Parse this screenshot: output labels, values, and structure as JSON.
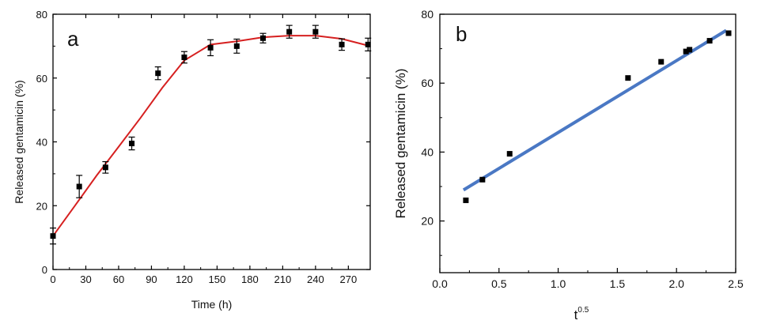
{
  "chart_data": [
    {
      "type": "scatter",
      "panel_label": "a",
      "xlabel": "Time (h)",
      "ylabel": "Released gentamicin (%)",
      "xlim": [
        0,
        290
      ],
      "ylim": [
        0,
        80
      ],
      "xticks": [
        0,
        30,
        60,
        90,
        120,
        150,
        180,
        210,
        240,
        270
      ],
      "yticks": [
        0,
        20,
        40,
        60,
        80
      ],
      "grid": false,
      "series": [
        {
          "kind": "points-with-error",
          "color": "#000000",
          "points": [
            {
              "x": 0,
              "y": 10.5,
              "err": 2.5
            },
            {
              "x": 24,
              "y": 26,
              "err": 3.5
            },
            {
              "x": 48,
              "y": 32,
              "err": 1.8
            },
            {
              "x": 72,
              "y": 39.5,
              "err": 2.0
            },
            {
              "x": 96,
              "y": 61.5,
              "err": 2.0
            },
            {
              "x": 120,
              "y": 66.5,
              "err": 1.8
            },
            {
              "x": 144,
              "y": 69.5,
              "err": 2.5
            },
            {
              "x": 168,
              "y": 70,
              "err": 2.2
            },
            {
              "x": 192,
              "y": 72.5,
              "err": 1.5
            },
            {
              "x": 216,
              "y": 74.5,
              "err": 2.0
            },
            {
              "x": 240,
              "y": 74.5,
              "err": 2.0
            },
            {
              "x": 264,
              "y": 70.5,
              "err": 1.8
            },
            {
              "x": 288,
              "y": 70.5,
              "err": 2.0
            }
          ]
        },
        {
          "kind": "fit-line",
          "color": "#d62020",
          "x": [
            0,
            20,
            40,
            60,
            80,
            100,
            120,
            144,
            168,
            192,
            216,
            240,
            264,
            290
          ],
          "y": [
            10.5,
            20,
            29.5,
            38.5,
            47.5,
            57,
            65.5,
            70.5,
            71.5,
            72.8,
            73.3,
            73.3,
            72.3,
            70
          ]
        }
      ]
    },
    {
      "type": "scatter",
      "panel_label": "b",
      "xlabel": "t",
      "xlabel_sup": "0.5",
      "ylabel": "Released gentamicin (%)",
      "xlim": [
        0,
        2.5
      ],
      "ylim": [
        5,
        80
      ],
      "xticks": [
        "0.0",
        "0.5",
        "1.0",
        "1.5",
        "2.0",
        "2.5"
      ],
      "yticks": [
        20,
        40,
        60,
        80
      ],
      "grid": false,
      "series": [
        {
          "kind": "points",
          "color": "#000000",
          "points": [
            {
              "x": 0.22,
              "y": 26
            },
            {
              "x": 0.36,
              "y": 32
            },
            {
              "x": 0.59,
              "y": 39.5
            },
            {
              "x": 1.59,
              "y": 61.5
            },
            {
              "x": 1.87,
              "y": 66.2
            },
            {
              "x": 2.08,
              "y": 69.2
            },
            {
              "x": 2.11,
              "y": 69.7
            },
            {
              "x": 2.28,
              "y": 72.3
            },
            {
              "x": 2.44,
              "y": 74.5
            }
          ]
        },
        {
          "kind": "fit-line",
          "color": "#4a78c4",
          "x": [
            0.2,
            2.42
          ],
          "y": [
            29,
            75.3
          ]
        }
      ]
    }
  ]
}
